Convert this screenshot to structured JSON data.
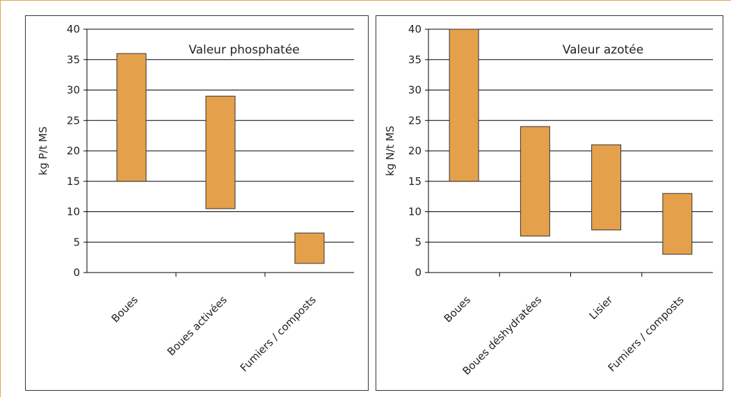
{
  "colors": {
    "bar_fill": "#e5a04b",
    "bar_stroke": "#333333",
    "grid": "#000000",
    "frame_border": "#e6a14a"
  },
  "chart_data": [
    {
      "type": "bar",
      "subtype": "floating-range",
      "title": "Valeur phosphatée",
      "xlabel": "",
      "ylabel": "kg P/t MS",
      "categories": [
        "Boues",
        "Boues activées",
        "Fumiers / composts"
      ],
      "ranges": [
        [
          15,
          36
        ],
        [
          10.5,
          29
        ],
        [
          1.5,
          6.5
        ]
      ],
      "ylim": [
        0,
        40
      ],
      "yticks": [
        0,
        5,
        10,
        15,
        20,
        25,
        30,
        35,
        40
      ],
      "grid": true,
      "legend": "none"
    },
    {
      "type": "bar",
      "subtype": "floating-range",
      "title": "Valeur azotée",
      "xlabel": "",
      "ylabel": "kg N/t MS",
      "categories": [
        "Boues",
        "Boues déshydratées",
        "Lisier",
        "Fumiers / composts"
      ],
      "ranges": [
        [
          15,
          40
        ],
        [
          6,
          24
        ],
        [
          7,
          21
        ],
        [
          3,
          13
        ]
      ],
      "ylim": [
        0,
        40
      ],
      "yticks": [
        0,
        5,
        10,
        15,
        20,
        25,
        30,
        35,
        40
      ],
      "grid": true,
      "legend": "none"
    }
  ]
}
